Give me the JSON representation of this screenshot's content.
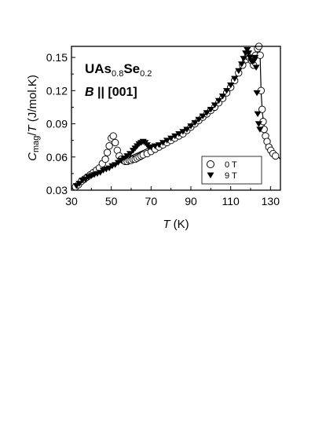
{
  "chart_data": {
    "type": "scatter",
    "title": "",
    "annotation": {
      "compound": {
        "base1": "UAs",
        "sub1": "0.8",
        "base2": "Se",
        "sub2": "0.2"
      },
      "field_var": "B",
      "field_rest": " || [001]"
    },
    "xlabel": {
      "var": "T",
      "unit": " (K)"
    },
    "ylabel": {
      "var_c": "C",
      "sub": "mag",
      "rest": "/",
      "var_t": "T",
      "unit": " (J/mol.K)"
    },
    "xlim": [
      30,
      135
    ],
    "ylim": [
      0.03,
      0.16
    ],
    "xticks": [
      30,
      50,
      70,
      90,
      110,
      130
    ],
    "yticks": [
      0.03,
      0.06,
      0.09,
      0.12,
      0.15
    ],
    "ytick_labels": [
      "0.03",
      "0.06",
      "0.09",
      "0.12",
      "0.15"
    ],
    "grid": false,
    "legend": {
      "position": "bottom-right",
      "entries": [
        "0 T",
        "9 T"
      ]
    },
    "series": [
      {
        "name": "0 T",
        "marker": "open-circle",
        "points": [
          [
            32,
            0.033
          ],
          [
            33.5,
            0.035
          ],
          [
            35,
            0.038
          ],
          [
            36.5,
            0.04
          ],
          [
            38,
            0.042
          ],
          [
            39.5,
            0.044
          ],
          [
            41,
            0.046
          ],
          [
            42.5,
            0.048
          ],
          [
            44,
            0.05
          ],
          [
            45.5,
            0.054
          ],
          [
            47,
            0.058
          ],
          [
            48,
            0.064
          ],
          [
            49,
            0.07
          ],
          [
            50,
            0.077
          ],
          [
            51,
            0.079
          ],
          [
            52,
            0.073
          ],
          [
            53,
            0.066
          ],
          [
            54,
            0.061
          ],
          [
            55,
            0.058
          ],
          [
            56,
            0.057
          ],
          [
            57,
            0.056
          ],
          [
            58,
            0.056
          ],
          [
            59,
            0.057
          ],
          [
            60,
            0.057
          ],
          [
            61,
            0.058
          ],
          [
            62,
            0.058
          ],
          [
            63,
            0.059
          ],
          [
            64,
            0.06
          ],
          [
            65,
            0.061
          ],
          [
            66,
            0.062
          ],
          [
            68,
            0.063
          ],
          [
            70,
            0.065
          ],
          [
            72,
            0.067
          ],
          [
            74,
            0.069
          ],
          [
            76,
            0.071
          ],
          [
            78,
            0.073
          ],
          [
            80,
            0.075
          ],
          [
            82,
            0.077
          ],
          [
            84,
            0.079
          ],
          [
            86,
            0.081
          ],
          [
            88,
            0.084
          ],
          [
            90,
            0.087
          ],
          [
            92,
            0.09
          ],
          [
            94,
            0.093
          ],
          [
            96,
            0.096
          ],
          [
            98,
            0.099
          ],
          [
            100,
            0.102
          ],
          [
            102,
            0.105
          ],
          [
            104,
            0.109
          ],
          [
            106,
            0.113
          ],
          [
            108,
            0.118
          ],
          [
            110,
            0.123
          ],
          [
            112,
            0.129
          ],
          [
            114,
            0.136
          ],
          [
            116,
            0.143
          ],
          [
            117.5,
            0.148
          ],
          [
            118.5,
            0.151
          ],
          [
            119.5,
            0.15
          ],
          [
            120.5,
            0.147
          ],
          [
            121.5,
            0.143
          ],
          [
            122.5,
            0.152
          ],
          [
            123.5,
            0.158
          ],
          [
            124.2,
            0.16
          ],
          [
            124.8,
            0.152
          ],
          [
            125.3,
            0.12
          ],
          [
            125.8,
            0.103
          ],
          [
            126.3,
            0.092
          ],
          [
            126.8,
            0.085
          ],
          [
            127.5,
            0.079
          ],
          [
            128.3,
            0.074
          ],
          [
            129.2,
            0.069
          ],
          [
            130.2,
            0.066
          ],
          [
            131.3,
            0.063
          ],
          [
            132.5,
            0.061
          ]
        ]
      },
      {
        "name": "9 T",
        "marker": "filled-triangle-down",
        "points": [
          [
            32.5,
            0.034
          ],
          [
            34,
            0.036
          ],
          [
            35.5,
            0.039
          ],
          [
            37,
            0.04
          ],
          [
            38.5,
            0.042
          ],
          [
            40,
            0.043
          ],
          [
            41.5,
            0.044
          ],
          [
            43,
            0.045
          ],
          [
            44.5,
            0.046
          ],
          [
            46,
            0.048
          ],
          [
            47.5,
            0.049
          ],
          [
            49,
            0.05
          ],
          [
            50.5,
            0.052
          ],
          [
            52,
            0.053
          ],
          [
            53.5,
            0.055
          ],
          [
            55,
            0.057
          ],
          [
            56.5,
            0.059
          ],
          [
            58,
            0.061
          ],
          [
            59.5,
            0.063
          ],
          [
            61,
            0.066
          ],
          [
            62,
            0.068
          ],
          [
            63,
            0.07
          ],
          [
            64,
            0.072
          ],
          [
            65,
            0.073
          ],
          [
            66,
            0.074
          ],
          [
            67,
            0.073
          ],
          [
            68,
            0.071
          ],
          [
            69,
            0.069
          ],
          [
            70,
            0.069
          ],
          [
            72,
            0.07
          ],
          [
            74,
            0.071
          ],
          [
            76,
            0.073
          ],
          [
            78,
            0.075
          ],
          [
            80,
            0.077
          ],
          [
            82,
            0.079
          ],
          [
            84,
            0.081
          ],
          [
            86,
            0.083
          ],
          [
            88,
            0.085
          ],
          [
            90,
            0.088
          ],
          [
            92,
            0.091
          ],
          [
            94,
            0.094
          ],
          [
            96,
            0.097
          ],
          [
            98,
            0.1
          ],
          [
            100,
            0.103
          ],
          [
            102,
            0.107
          ],
          [
            104,
            0.111
          ],
          [
            106,
            0.115
          ],
          [
            108,
            0.12
          ],
          [
            110,
            0.125
          ],
          [
            112,
            0.131
          ],
          [
            114,
            0.138
          ],
          [
            115.5,
            0.144
          ],
          [
            116.5,
            0.149
          ],
          [
            117.5,
            0.154
          ],
          [
            118.3,
            0.157
          ],
          [
            119,
            0.154
          ],
          [
            119.7,
            0.15
          ],
          [
            120.3,
            0.147
          ],
          [
            121,
            0.146
          ],
          [
            121.7,
            0.147
          ],
          [
            122.3,
            0.15
          ],
          [
            122.8,
            0.141
          ],
          [
            123.2,
            0.118
          ],
          [
            123.6,
            0.099
          ],
          [
            124.1,
            0.09
          ],
          [
            124.7,
            0.085
          ]
        ]
      }
    ],
    "fit_line": {
      "points": [
        [
          30,
          0.031
        ],
        [
          40,
          0.042
        ],
        [
          50,
          0.052
        ],
        [
          60,
          0.061
        ],
        [
          70,
          0.069
        ],
        [
          80,
          0.077
        ],
        [
          90,
          0.087
        ],
        [
          100,
          0.102
        ],
        [
          110,
          0.124
        ],
        [
          116,
          0.145
        ],
        [
          118.5,
          0.153
        ],
        [
          120,
          0.148
        ],
        [
          121.5,
          0.146
        ],
        [
          122.5,
          0.151
        ],
        [
          123.5,
          0.157
        ],
        [
          124.3,
          0.159
        ],
        [
          124.8,
          0.15
        ],
        [
          125.3,
          0.118
        ],
        [
          126,
          0.099
        ],
        [
          127,
          0.086
        ],
        [
          128.5,
          0.075
        ],
        [
          130,
          0.068
        ],
        [
          132,
          0.063
        ],
        [
          134,
          0.06
        ],
        [
          135,
          0.058
        ]
      ]
    }
  }
}
